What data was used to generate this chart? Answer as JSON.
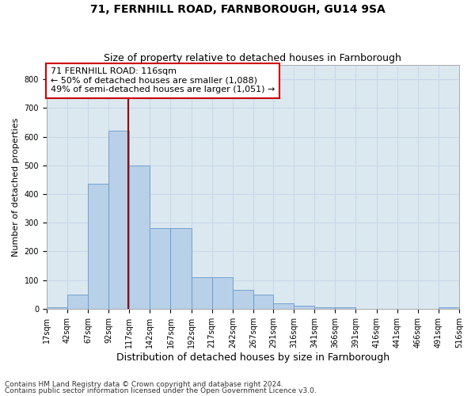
{
  "title1": "71, FERNHILL ROAD, FARNBOROUGH, GU14 9SA",
  "title2": "Size of property relative to detached houses in Farnborough",
  "xlabel": "Distribution of detached houses by size in Farnborough",
  "ylabel": "Number of detached properties",
  "footnote1": "Contains HM Land Registry data © Crown copyright and database right 2024.",
  "footnote2": "Contains public sector information licensed under the Open Government Licence v3.0.",
  "annotation_line1": "71 FERNHILL ROAD: 116sqm",
  "annotation_line2": "← 50% of detached houses are smaller (1,088)",
  "annotation_line3": "49% of semi-detached houses are larger (1,051) →",
  "bar_edges": [
    17,
    42,
    67,
    92,
    117,
    142,
    167,
    192,
    217,
    242,
    267,
    291,
    316,
    341,
    366,
    391,
    416,
    441,
    466,
    491,
    516
  ],
  "bar_heights": [
    5,
    50,
    435,
    620,
    500,
    280,
    280,
    110,
    110,
    65,
    50,
    20,
    10,
    5,
    5,
    0,
    0,
    0,
    0,
    5
  ],
  "bar_color": "#b8d0e8",
  "bar_edge_color": "#6699cc",
  "vline_x": 116,
  "vline_color": "#990000",
  "ylim": [
    0,
    850
  ],
  "yticks": [
    0,
    100,
    200,
    300,
    400,
    500,
    600,
    700,
    800
  ],
  "grid_color": "#c8d8ea",
  "bg_color": "#dce8f0",
  "annotation_box_color": "#cc0000",
  "title_fontsize": 10,
  "subtitle_fontsize": 9,
  "tick_label_fontsize": 7,
  "ylabel_fontsize": 8,
  "xlabel_fontsize": 9,
  "annotation_fontsize": 8,
  "footnote_fontsize": 6.5
}
